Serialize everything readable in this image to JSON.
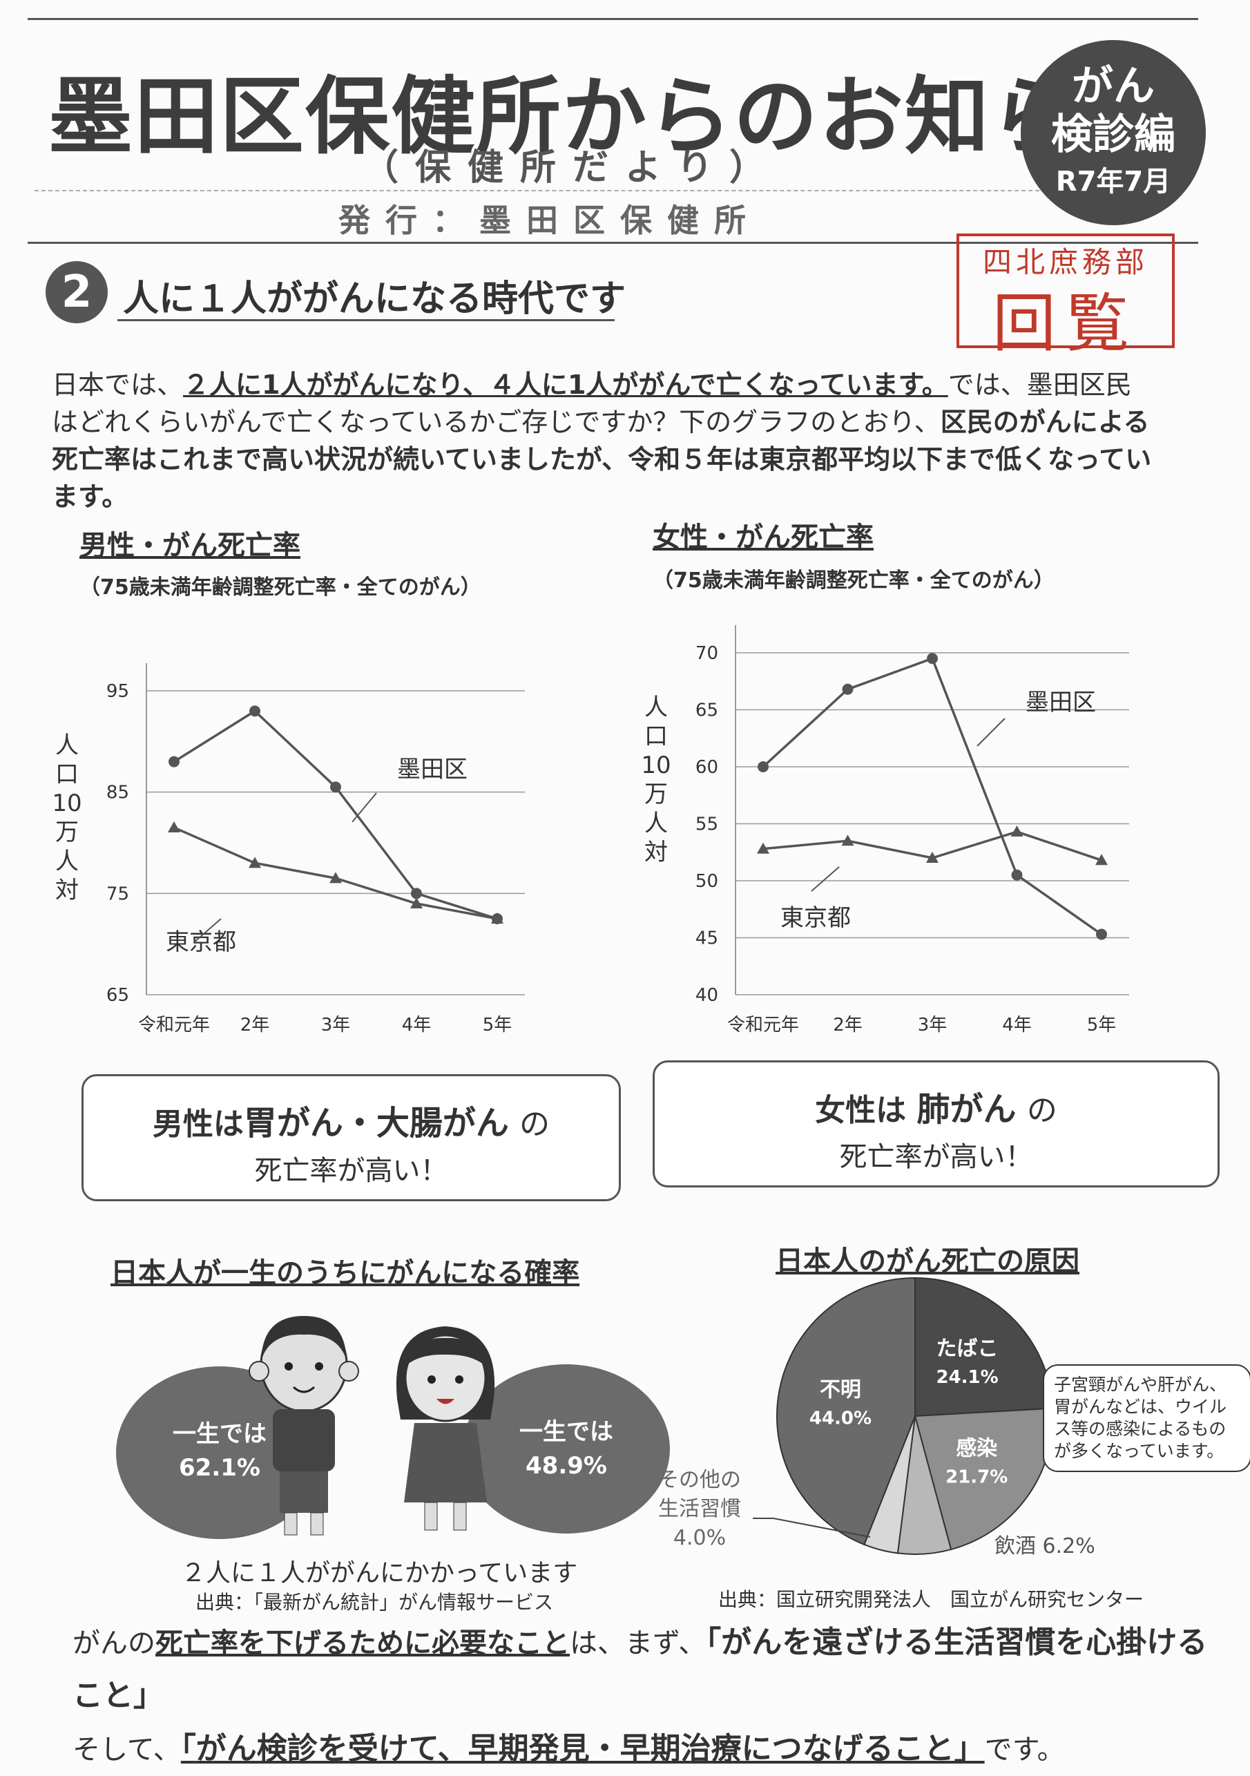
{
  "header": {
    "title": "墨田区保健所からのお知らせ",
    "subtitle": "（保健所だより）",
    "issuer": "発行：墨田区保健所",
    "badge": {
      "line1": "がん",
      "line2": "検診編",
      "date": "R7年7月"
    },
    "stamp": {
      "dept": "四北庶務部",
      "label": "回覧"
    }
  },
  "section": {
    "number": "2",
    "title": "人に１人ががんになる時代です",
    "intro_a": "日本では、",
    "intro_b": "２人に1人ががんになり、４人に1人ががんで亡くなっています。",
    "intro_c": "では、墨田区民はどれくらいがんで亡くなっているかご存じですか？下のグラフのとおり、",
    "intro_d": "区民のがんによる死亡率はこれまで高い状況が続いていましたが、令和５年は東京都平均以下まで低くなっています。"
  },
  "chart_data": [
    {
      "type": "line",
      "title": "男性・がん死亡率",
      "subtitle": "（75歳未満年齢調整死亡率・全てのがん）",
      "ylabel": "人口10万人対",
      "categories": [
        "令和元年",
        "2年",
        "3年",
        "4年",
        "5年"
      ],
      "yticks": [
        65,
        75,
        85,
        95
      ],
      "ylim": [
        65,
        95
      ],
      "series": [
        {
          "name": "墨田区",
          "values": [
            88.0,
            93.0,
            85.5,
            75.0,
            72.5
          ],
          "marker": "circle"
        },
        {
          "name": "東京都",
          "values": [
            81.5,
            78.0,
            76.5,
            74.0,
            72.5
          ],
          "marker": "triangle"
        }
      ],
      "grid": true
    },
    {
      "type": "line",
      "title": "女性・がん死亡率",
      "subtitle": "（75歳未満年齢調整死亡率・全てのがん）",
      "ylabel": "人口10万人対",
      "categories": [
        "令和元年",
        "2年",
        "3年",
        "4年",
        "5年"
      ],
      "yticks": [
        40,
        45,
        50,
        55,
        60,
        65,
        70
      ],
      "ylim": [
        40,
        70
      ],
      "series": [
        {
          "name": "墨田区",
          "values": [
            60.0,
            66.8,
            69.5,
            50.5,
            45.3
          ],
          "marker": "circle"
        },
        {
          "name": "東京都",
          "values": [
            52.8,
            53.5,
            52.0,
            54.3,
            51.8
          ],
          "marker": "triangle"
        }
      ],
      "grid": true
    },
    {
      "type": "pie",
      "title": "日本人のがん死亡の原因",
      "slices": [
        {
          "label": "たばこ",
          "value": 24.1,
          "text": "24.1%",
          "color": "#4a4a4a"
        },
        {
          "label": "感染",
          "value": 21.7,
          "text": "21.7%",
          "color": "#8f8f8f"
        },
        {
          "label": "飲酒",
          "value": 6.2,
          "text": "6.2%",
          "color": "#b8b8b8"
        },
        {
          "label": "その他の生活習慣",
          "value": 4.0,
          "text": "4.0%",
          "color": "#d8d8d8"
        },
        {
          "label": "不明",
          "value": 44.0,
          "text": "44.0%",
          "color": "#6a6a6a"
        }
      ],
      "source": "出典：国立研究開発法人　国立がん研究センター"
    }
  ],
  "boxes": {
    "male_a": "男性は",
    "male_b": "胃がん・大腸がん",
    "male_c": "の",
    "male_d": "死亡率が高い！",
    "female_a": "女性は",
    "female_b": "肺がん",
    "female_c": "の",
    "female_d": "死亡率が高い！"
  },
  "risk": {
    "title": "日本人が一生のうちにがんになる確率",
    "male_label": "一生では",
    "male_value": "62.1%",
    "female_label": "一生では",
    "female_value": "48.9%",
    "caption": "２人に１人ががんにかかっています",
    "source": "出典：「最新がん統計」がん情報サービス"
  },
  "pie_labels": {
    "other_line1": "その他の",
    "other_line2": "生活習慣",
    "drinking": "飲酒 6.2%",
    "note": "子宮頸がんや肝がん、胃がんなどは、ウイルス等の感染によるものが多くなっています。"
  },
  "bottom": {
    "a": "がんの",
    "b": "死亡率を下げるために必要なこと",
    "c": "は、まず、",
    "d": "「がんを遠ざける生活習慣を心掛けること」",
    "e": "そして、",
    "f": "「がん検診を受けて、早期発見・早期治療につなげること」",
    "g": "です。"
  }
}
